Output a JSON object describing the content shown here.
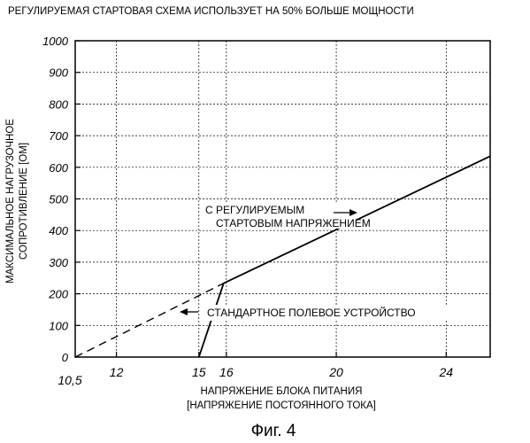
{
  "title": "РЕГУЛИРУЕМАЯ СТАРТОВАЯ СХЕМА ИСПОЛЬЗУЕТ НА 50% БОЛЬШЕ МОЩНОСТИ",
  "caption": "Фиг. 4",
  "ylabel_line1": "МАКСИМАЛЬНОЕ НАГРУЗОЧНОЕ",
  "ylabel_line2": "СОПРОТИВЛЕНИЕ [ОМ]",
  "xlabel_line1": "НАПРЯЖЕНИЕ БЛОКА ПИТАНИЯ",
  "xlabel_line2": "[НАПРЯЖЕНИЕ ПОСТОЯННОГО ТОКА]",
  "annotations": {
    "regulated_line1": "С РЕГУЛИРУЕМЫМ",
    "regulated_line2": "СТАРТОВЫМ НАПРЯЖЕНИЕМ",
    "standard": "СТАНДАРТНОЕ ПОЛЕВОЕ УСТРОЙСТВО"
  },
  "chart_data": {
    "type": "line",
    "title": "РЕГУЛИРУЕМАЯ СТАРТОВАЯ СХЕМА ИСПОЛЬЗУЕТ НА 50% БОЛЬШЕ МОЩНОСТИ",
    "xlabel": "НАПРЯЖЕНИЕ БЛОКА ПИТАНИЯ [НАПРЯЖЕНИЕ ПОСТОЯННОГО ТОКА]",
    "ylabel": "МАКСИМАЛЬНОЕ НАГРУЗОЧНОЕ СОПРОТИВЛЕНИЕ [ОМ]",
    "xlim": [
      10.5,
      25.6
    ],
    "ylim": [
      0,
      1000
    ],
    "grid": true,
    "x_ticks": [
      {
        "value": 10.5,
        "label": "10,5"
      },
      {
        "value": 12,
        "label": "12"
      },
      {
        "value": 15,
        "label": "15"
      },
      {
        "value": 16,
        "label": "16"
      },
      {
        "value": 20,
        "label": "20"
      },
      {
        "value": 24,
        "label": "24"
      }
    ],
    "x_grid": [
      12,
      15,
      16,
      20,
      24
    ],
    "y_ticks": [
      0,
      100,
      200,
      300,
      400,
      500,
      600,
      700,
      800,
      900,
      1000
    ],
    "series": [
      {
        "name": "С РЕГУЛИРУЕМЫМ СТАРТОВЫМ НАПРЯЖЕНИЕМ",
        "style": "solid",
        "points": [
          [
            15.0,
            0
          ],
          [
            15.9,
            233
          ],
          [
            25.6,
            635
          ]
        ]
      },
      {
        "name": "СТАНДАРТНОЕ ПОЛЕВОЕ УСТРОЙСТВО",
        "style": "dashed",
        "points": [
          [
            10.5,
            0
          ],
          [
            15.9,
            233
          ]
        ]
      }
    ]
  }
}
